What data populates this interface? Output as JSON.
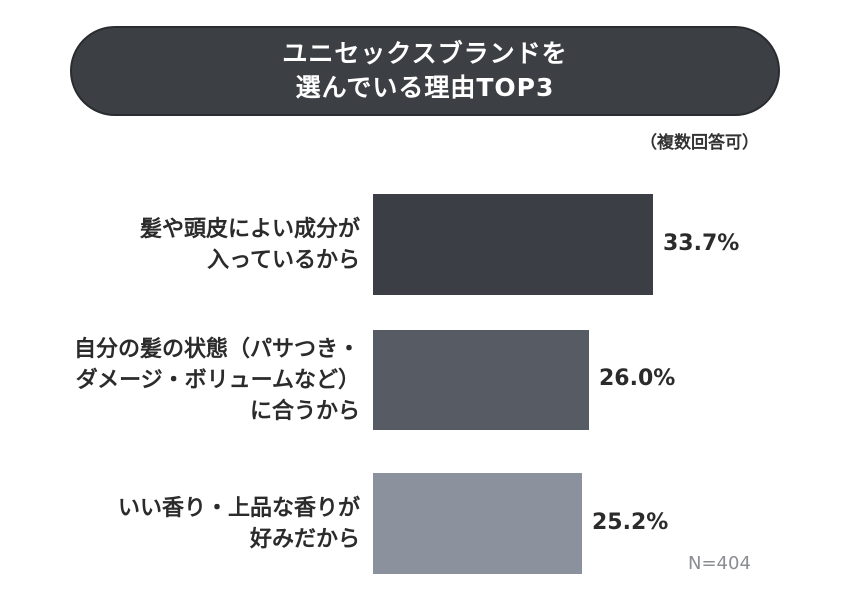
{
  "title": {
    "line1": "ユニセックスブランドを",
    "line2": "選んでいる理由TOP3"
  },
  "note": "（複数回答可）",
  "sample_size": "N=404",
  "chart_data": {
    "type": "bar",
    "orientation": "horizontal",
    "categories": [
      [
        "髪や頭皮によい成分が",
        "入っているから"
      ],
      [
        "自分の髪の状態（パサつき・",
        "ダメージ・ボリュームなど）",
        "に合うから"
      ],
      [
        "いい香り・上品な香りが",
        "好みだから"
      ]
    ],
    "values": [
      33.7,
      26.0,
      25.2
    ],
    "value_labels": [
      "33.7%",
      "26.0%",
      "25.2%"
    ],
    "colors": [
      "#3b3e44",
      "#565b64",
      "#8b929d"
    ],
    "xlim": [
      0,
      45
    ],
    "grid": false
  }
}
